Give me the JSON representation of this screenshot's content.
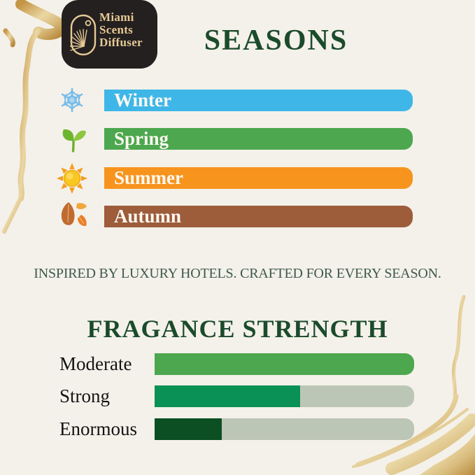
{
  "brand": {
    "line1": "Miami",
    "line2": "Scents",
    "line3": "Diffuser"
  },
  "seasons": {
    "title": "SEASONS",
    "rows": [
      {
        "label": "Winter",
        "icon": "snowflake-icon"
      },
      {
        "label": "Spring",
        "icon": "seedling-icon"
      },
      {
        "label": "Summer",
        "icon": "sun-icon"
      },
      {
        "label": "Autumn",
        "icon": "autumn-leaves-icon"
      }
    ]
  },
  "tagline": "INSPIRED BY LUXURY HOTELS. CRAFTED FOR EVERY SEASON.",
  "strength": {
    "title": "FRAGANCE STRENGTH",
    "rows": [
      {
        "label": "Moderate"
      },
      {
        "label": "Strong"
      },
      {
        "label": "Enormous"
      }
    ]
  },
  "colors": {
    "background": "#F4F1EA",
    "title_green": "#1B4B2B",
    "logo_black": "#242020",
    "logo_gold": "#E6C994",
    "track_gray_green": "#BCC6B6",
    "brush_gold": "#C59546"
  },
  "chart_data": [
    {
      "type": "bar",
      "title": "SEASONS",
      "categories": [
        "Winter",
        "Spring",
        "Summer",
        "Autumn"
      ],
      "values": [
        100,
        100,
        100,
        100
      ],
      "colors": [
        "#3EB7E8",
        "#4CA74E",
        "#F7941E",
        "#9D5C3A"
      ],
      "xlabel": "",
      "ylabel": "",
      "grid": false,
      "legend_position": "none",
      "note": "decorative full-width labeled bars, white serif labels inside bars"
    },
    {
      "type": "bar",
      "title": "FRAGANCE STRENGTH",
      "categories": [
        "Moderate",
        "Strong",
        "Enormous"
      ],
      "values": [
        100,
        56,
        26
      ],
      "xlim": [
        0,
        100
      ],
      "colors": [
        "#4CA74E",
        "#0A9155",
        "#0B4F23"
      ],
      "track_color": "#BCC6B6",
      "xlabel": "",
      "ylabel": "",
      "grid": false,
      "legend_position": "none"
    }
  ]
}
